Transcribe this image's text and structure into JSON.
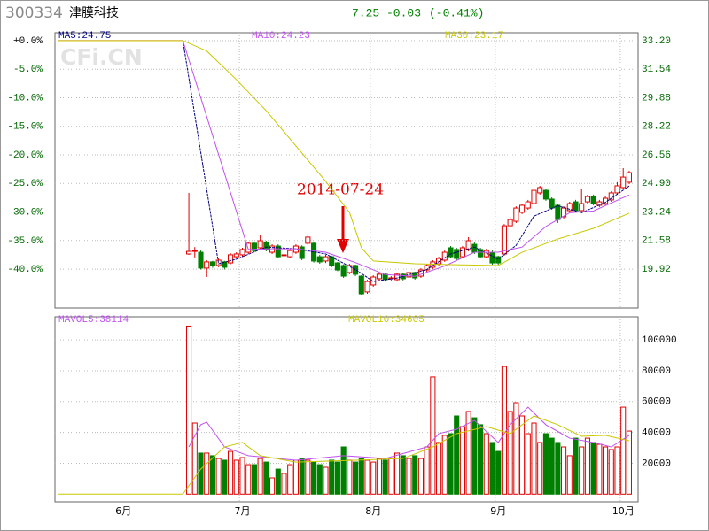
{
  "header": {
    "code": "300334",
    "name": "津膜科技",
    "price": "7.25",
    "change": "-0.03",
    "change_pct": "(-0.41%)"
  },
  "chart_data": [
    {
      "type": "candlestick",
      "watermark": "CFi.CN",
      "annotation": "2014-07-24",
      "up_color": "#e00000",
      "down_color": "#008000",
      "grid": true,
      "ylim": [
        17.66,
        33.66
      ],
      "yticks": [
        {
          "value": 33.2,
          "label": "33.20"
        },
        31.54,
        29.88,
        28.22,
        26.56,
        {
          "value": 24.9,
          "label": "24.90"
        },
        23.24,
        21.58,
        19.92
      ],
      "y2lim": [
        -46.8,
        1.39
      ],
      "y2ticks": [
        {
          "value": 0,
          "label": "+0.0%"
        },
        {
          "value": -5,
          "label": "-5.0%"
        },
        {
          "value": -10,
          "label": "-10.0%"
        },
        {
          "value": -15,
          "label": "-15.0%"
        },
        {
          "value": -20,
          "label": "-20.0%"
        },
        {
          "value": -25,
          "label": "-25.0%"
        },
        {
          "value": -30,
          "label": "-30.0%"
        },
        {
          "value": -35,
          "label": "-35.0%"
        },
        {
          "value": -40,
          "label": "-40.0%"
        }
      ],
      "open": [
        null,
        null,
        null,
        null,
        null,
        null,
        null,
        null,
        null,
        null,
        null,
        null,
        null,
        null,
        null,
        null,
        null,
        null,
        null,
        null,
        null,
        null,
        20.8,
        20.95,
        20.9,
        19.98,
        20.34,
        20.13,
        20.34,
        20.28,
        20.64,
        20.75,
        20.9,
        21.42,
        21.16,
        21.47,
        20.9,
        21.26,
        20.7,
        20.64,
        20.9,
        21.21,
        21.42,
        21.42,
        20.64,
        20.39,
        20.64,
        20.28,
        20.13,
        19.72,
        20.13,
        19.51,
        18.59,
        19.0,
        19.36,
        19.62,
        19.36,
        19.31,
        19.62,
        19.46,
        19.72,
        19.51,
        19.87,
        20.03,
        20.23,
        20.44,
        21.16,
        21.06,
        20.64,
        21.06,
        21.36,
        21.06,
        20.64,
        20.9,
        20.64,
        20.8,
        22.44,
        22.7,
        23.22,
        23.47,
        23.73,
        24.35,
        24.5,
        23.99,
        23.63,
        22.96,
        23.32,
        23.83,
        23.32,
        23.83,
        24.14,
        23.63,
        23.73,
        23.94,
        24.35,
        24.66,
        24.97,
        null
      ],
      "close": [
        33.2,
        33.2,
        33.2,
        33.2,
        33.2,
        33.2,
        33.2,
        33.2,
        33.2,
        33.2,
        33.2,
        33.2,
        33.2,
        33.2,
        33.2,
        33.2,
        33.2,
        33.2,
        33.2,
        33.2,
        33.2,
        33.2,
        20.95,
        21.0,
        19.98,
        20.34,
        20.13,
        20.44,
        20.03,
        20.75,
        20.8,
        21.06,
        21.42,
        21.0,
        21.57,
        21.06,
        21.26,
        20.64,
        20.75,
        21.0,
        21.26,
        20.54,
        21.78,
        20.39,
        20.34,
        20.64,
        20.13,
        19.87,
        19.51,
        20.13,
        19.62,
        18.48,
        19.2,
        19.46,
        19.62,
        19.31,
        19.41,
        19.62,
        19.36,
        19.72,
        19.41,
        19.87,
        20.13,
        20.34,
        20.54,
        20.9,
        20.64,
        20.54,
        21.16,
        21.57,
        20.9,
        20.64,
        21.0,
        20.28,
        20.28,
        22.44,
        22.8,
        23.47,
        23.63,
        23.83,
        24.5,
        24.66,
        23.99,
        23.47,
        22.8,
        23.47,
        23.73,
        23.32,
        23.73,
        24.14,
        23.73,
        23.83,
        24.04,
        24.35,
        24.76,
        25.27,
        25.53,
        null
      ],
      "high": [
        null,
        null,
        null,
        null,
        null,
        null,
        null,
        null,
        null,
        null,
        null,
        null,
        null,
        null,
        null,
        null,
        null,
        null,
        null,
        null,
        null,
        null,
        24.35,
        21.2,
        21.0,
        20.44,
        20.4,
        20.54,
        20.4,
        20.85,
        20.9,
        21.16,
        21.52,
        21.5,
        21.93,
        21.57,
        21.36,
        21.36,
        20.9,
        21.1,
        21.36,
        21.3,
        21.93,
        21.52,
        20.75,
        20.75,
        20.7,
        20.34,
        20.2,
        20.23,
        20.18,
        19.56,
        19.3,
        19.56,
        19.72,
        19.67,
        19.51,
        19.72,
        19.67,
        19.82,
        19.77,
        19.98,
        20.23,
        20.44,
        20.64,
        21.0,
        21.26,
        21.16,
        21.26,
        21.78,
        21.47,
        21.16,
        21.1,
        21.0,
        20.7,
        22.54,
        22.96,
        23.57,
        23.73,
        23.94,
        24.66,
        24.76,
        24.6,
        24.09,
        23.73,
        23.57,
        23.83,
        23.94,
        24.6,
        24.25,
        24.25,
        23.94,
        24.14,
        24.45,
        24.97,
        25.79,
        25.63,
        null
      ],
      "low": [
        null,
        null,
        null,
        null,
        null,
        null,
        null,
        null,
        null,
        null,
        null,
        null,
        null,
        null,
        null,
        null,
        null,
        null,
        null,
        null,
        null,
        null,
        20.75,
        20.6,
        19.9,
        19.46,
        20.0,
        20.03,
        19.9,
        20.2,
        20.54,
        20.64,
        20.8,
        20.9,
        21.06,
        20.95,
        20.8,
        20.54,
        20.54,
        20.54,
        20.8,
        20.44,
        21.3,
        20.3,
        20.23,
        20.28,
        20.03,
        19.8,
        19.41,
        19.62,
        19.51,
        18.43,
        18.48,
        18.9,
        19.26,
        19.2,
        19.26,
        19.2,
        19.26,
        19.36,
        19.31,
        19.41,
        19.77,
        19.93,
        20.13,
        20.34,
        20.54,
        20.44,
        20.54,
        20.95,
        20.8,
        20.54,
        20.54,
        20.18,
        20.18,
        20.7,
        22.34,
        22.6,
        23.12,
        23.37,
        23.63,
        24.25,
        23.89,
        23.37,
        22.6,
        22.86,
        23.22,
        23.22,
        23.22,
        23.73,
        23.63,
        23.53,
        23.63,
        23.83,
        24.25,
        24.55,
        24.87,
        null
      ],
      "series": [
        {
          "name": "MA5:24.75",
          "color": "#000080",
          "x": [
            0,
            21,
            27,
            30,
            35,
            40,
            45,
            50,
            53,
            57,
            62,
            66,
            70,
            74,
            77,
            80,
            84,
            88,
            92,
            96
          ],
          "values": [
            33.2,
            33.2,
            20.23,
            20.5,
            21.2,
            21.1,
            20.8,
            19.9,
            19.2,
            19.4,
            19.9,
            20.8,
            21.2,
            20.5,
            21.3,
            23.0,
            23.6,
            23.2,
            23.8,
            24.75
          ]
        },
        {
          "name": "MA10:24.23",
          "color": "#c050f0",
          "x": [
            0,
            21,
            32,
            36,
            40,
            45,
            50,
            55,
            60,
            65,
            70,
            74,
            78,
            82,
            86,
            90,
            96
          ],
          "values": [
            33.2,
            33.2,
            21.06,
            21.1,
            21.1,
            20.9,
            20.3,
            19.6,
            19.5,
            20.1,
            20.9,
            20.9,
            21.2,
            22.4,
            23.2,
            23.3,
            24.23
          ]
        },
        {
          "name": "MA30:23.17",
          "color": "#c8c800",
          "x": [
            0,
            21,
            25,
            30,
            35,
            40,
            45,
            49,
            51,
            53,
            60,
            66,
            74,
            78,
            84,
            90,
            96
          ],
          "values": [
            33.2,
            33.2,
            32.6,
            30.93,
            29.13,
            27.08,
            25.02,
            23.22,
            21.16,
            20.39,
            20.23,
            20.18,
            20.13,
            20.9,
            21.67,
            22.29,
            23.17
          ]
        }
      ]
    },
    {
      "type": "bar",
      "grid": true,
      "categories": [
        null,
        null,
        null,
        null,
        null,
        null,
        null,
        null,
        null,
        null,
        null,
        "6月",
        null,
        null,
        null,
        null,
        null,
        null,
        null,
        null,
        null,
        null,
        null,
        null,
        null,
        null,
        null,
        null,
        null,
        null,
        null,
        "7月",
        null,
        null,
        null,
        null,
        null,
        null,
        null,
        null,
        null,
        null,
        null,
        null,
        null,
        null,
        null,
        null,
        null,
        null,
        null,
        null,
        null,
        "8月",
        null,
        null,
        null,
        null,
        null,
        null,
        null,
        null,
        null,
        null,
        null,
        null,
        null,
        null,
        null,
        null,
        null,
        null,
        null,
        null,
        "9月",
        null,
        null,
        null,
        null,
        null,
        null,
        null,
        null,
        null,
        null,
        null,
        null,
        null,
        null,
        null,
        null,
        null,
        null,
        null,
        null,
        "10月",
        null,
        null
      ],
      "values": [
        null,
        null,
        null,
        null,
        null,
        null,
        null,
        null,
        null,
        null,
        null,
        null,
        null,
        null,
        null,
        null,
        null,
        null,
        null,
        null,
        null,
        null,
        109000,
        46100,
        26600,
        26600,
        24900,
        23100,
        22000,
        27700,
        22000,
        23700,
        19100,
        19100,
        23100,
        20800,
        10500,
        16200,
        13400,
        19100,
        22000,
        23100,
        22000,
        20800,
        19100,
        17400,
        22000,
        20800,
        30600,
        22000,
        20800,
        23100,
        22000,
        20800,
        23100,
        22000,
        23100,
        26600,
        24900,
        23100,
        24900,
        23100,
        30600,
        76000,
        33500,
        38100,
        39200,
        50700,
        43800,
        53600,
        49500,
        45000,
        39200,
        33500,
        27700,
        82800,
        53600,
        59300,
        50700,
        39200,
        46100,
        33500,
        39200,
        36300,
        33500,
        30600,
        24900,
        36300,
        30600,
        36300,
        33500,
        32300,
        30600,
        28900,
        30600,
        56400,
        40900,
        null
      ],
      "ylim": [
        -5000,
        115000
      ],
      "yticks": [
        20000,
        40000,
        60000,
        80000,
        100000
      ],
      "series": [
        {
          "name": "MAVOL5:38114",
          "color": "#c050f0",
          "x": [
            22,
            24,
            25,
            28,
            32,
            40,
            48,
            55,
            62,
            64,
            67,
            70,
            74,
            76,
            79,
            82,
            86,
            90,
            93,
            96
          ],
          "values": [
            30600,
            45000,
            46700,
            30600,
            24900,
            22000,
            24900,
            23100,
            30600,
            39200,
            42100,
            47800,
            33500,
            45000,
            56400,
            45000,
            36300,
            33500,
            30600,
            38114
          ]
        },
        {
          "name": "MAVOL10:34605",
          "color": "#c8c800",
          "x": [
            0,
            21,
            24,
            28,
            31,
            34,
            40,
            50,
            58,
            63,
            67,
            72,
            76,
            80,
            84,
            88,
            92,
            96
          ],
          "values": [
            0,
            0,
            16200,
            30600,
            33500,
            24900,
            20800,
            22000,
            23100,
            30600,
            39200,
            43800,
            39200,
            50700,
            45000,
            37500,
            38100,
            34605
          ]
        }
      ]
    }
  ]
}
